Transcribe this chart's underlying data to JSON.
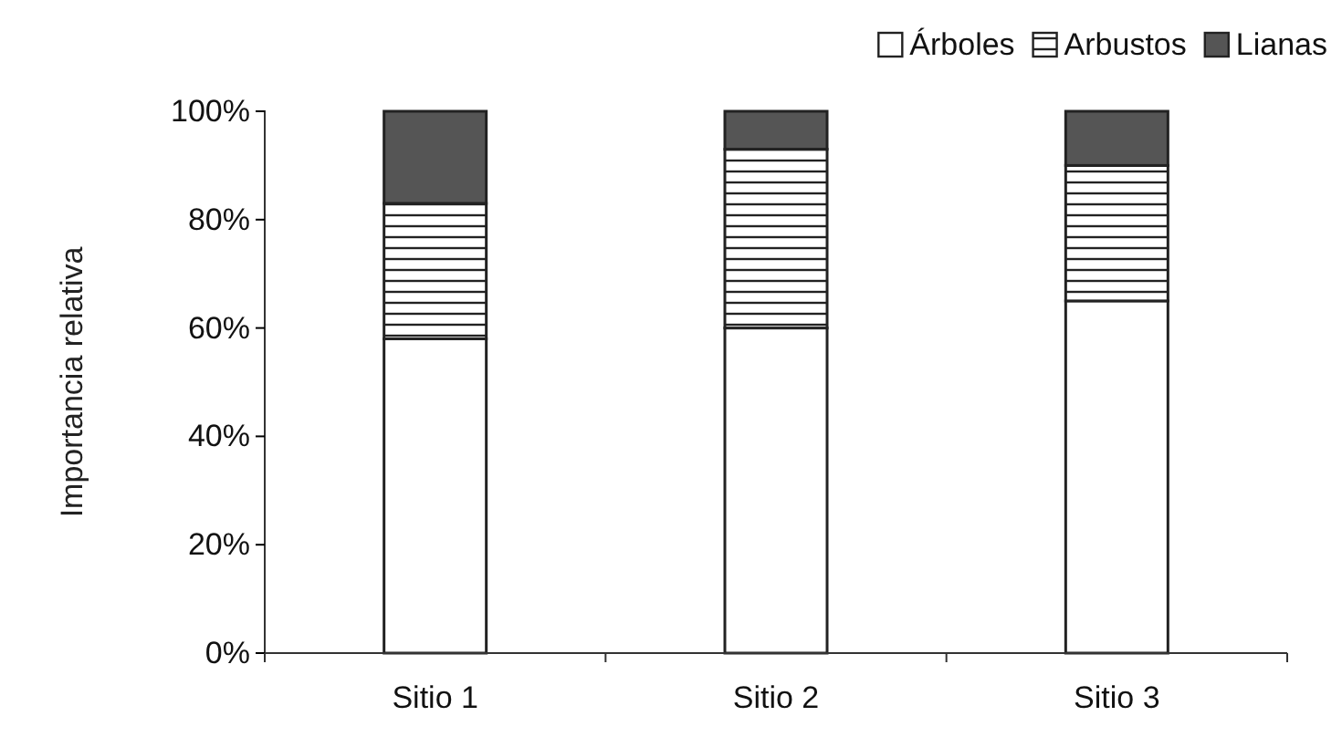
{
  "chart_data": {
    "type": "bar",
    "stacked": true,
    "ylabel": "Importancia relativa",
    "categories": [
      "Sitio 1",
      "Sitio 2",
      "Sitio 3"
    ],
    "series": [
      {
        "name": "Árboles",
        "color": "#ffffff",
        "values": [
          58,
          60,
          65
        ]
      },
      {
        "name": "Arbustos",
        "color": "#222222",
        "values": [
          25,
          33,
          25
        ]
      },
      {
        "name": "Lianas",
        "color": "#555555",
        "values": [
          17,
          7,
          10
        ]
      }
    ],
    "ylim": [
      0,
      100
    ],
    "yticks": [
      {
        "value": 0,
        "label": "0%"
      },
      {
        "value": 20,
        "label": "20%"
      },
      {
        "value": 40,
        "label": "40%"
      },
      {
        "value": 60,
        "label": "60%"
      },
      {
        "value": 80,
        "label": "80%"
      },
      {
        "value": 100,
        "label": "100%"
      }
    ],
    "grid": false,
    "legend": "top right"
  }
}
